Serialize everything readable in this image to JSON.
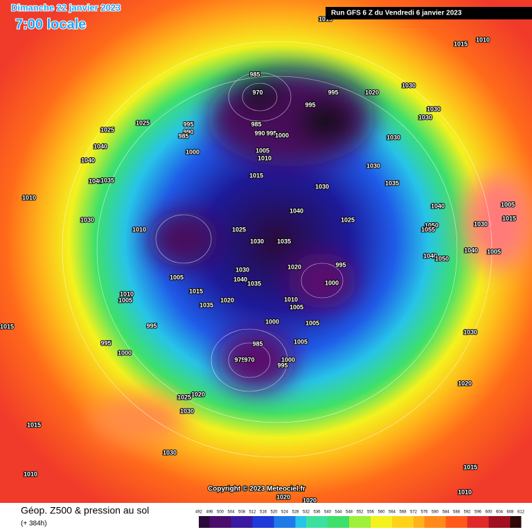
{
  "header": {
    "date": "Dimanche 22 janvier 2023",
    "time": "7:00 locale",
    "run": "Run GFS 6 Z du Vendredi 6 janvier 2023"
  },
  "footer": {
    "title": "Géop. Z500 & pression au sol",
    "lead": "(+ 384h)",
    "copyright": "Copyright © 2023 Meteociel.fr"
  },
  "colorbar_ticks": [
    492,
    496,
    500,
    504,
    508,
    512,
    516,
    520,
    524,
    528,
    532,
    536,
    540,
    544,
    548,
    552,
    556,
    560,
    564,
    568,
    572,
    576,
    580,
    584,
    588,
    592,
    596,
    600,
    604,
    608,
    612
  ],
  "pressure_labels": [
    "1015",
    "1015",
    "1010",
    "1030",
    "1020",
    "995",
    "985",
    "970",
    "995",
    "1030",
    "1030",
    "985",
    "990",
    "995",
    "1000",
    "1005",
    "1010",
    "1030",
    "1025",
    "1025",
    "1040",
    "995",
    "990",
    "985",
    "1000",
    "1040",
    "1030",
    "1015",
    "1040",
    "1035",
    "1035",
    "1030",
    "1010",
    "1040",
    "1005",
    "1040",
    "1030",
    "1025",
    "1010",
    "1025",
    "1050",
    "1055",
    "1030",
    "1015",
    "1030",
    "1035",
    "1040",
    "1050",
    "1040",
    "1005",
    "995",
    "1020",
    "1030",
    "1005",
    "1040",
    "1035",
    "1000",
    "1015",
    "1010",
    "1005",
    "1035",
    "1020",
    "1010",
    "1005",
    "1015",
    "1000",
    "1005",
    "1030",
    "995",
    "995",
    "1005",
    "985",
    "1000",
    "1000",
    "995",
    "975",
    "970",
    "1020",
    "1025",
    "1020",
    "1030",
    "1015",
    "1030",
    "1010",
    "1015",
    "1010",
    "1020",
    "1020"
  ]
}
